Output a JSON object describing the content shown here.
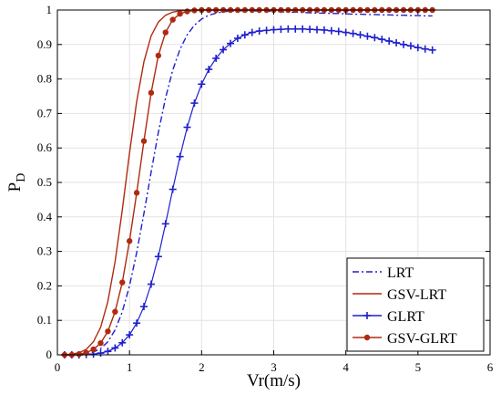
{
  "chart_data": {
    "type": "line",
    "xlabel": "Vr(m/s)",
    "ylabel_main": "P",
    "ylabel_sub": "D",
    "xlim": [
      0,
      6
    ],
    "ylim": [
      0,
      1
    ],
    "xticks": [
      "0",
      "1",
      "2",
      "3",
      "4",
      "5",
      "6"
    ],
    "yticks": [
      "0",
      "0.1",
      "0.2",
      "0.3",
      "0.4",
      "0.5",
      "0.6",
      "0.7",
      "0.8",
      "0.9",
      "1"
    ],
    "grid": true,
    "legend_position": "bottom-right",
    "x": [
      0.1,
      0.2,
      0.3,
      0.4,
      0.5,
      0.6,
      0.7,
      0.8,
      0.9,
      1.0,
      1.1,
      1.2,
      1.3,
      1.4,
      1.5,
      1.6,
      1.7,
      1.8,
      1.9,
      2.0,
      2.1,
      2.2,
      2.3,
      2.4,
      2.5,
      2.6,
      2.7,
      2.8,
      2.9,
      3.0,
      3.1,
      3.2,
      3.3,
      3.4,
      3.5,
      3.6,
      3.7,
      3.8,
      3.9,
      4.0,
      4.1,
      4.2,
      4.3,
      4.4,
      4.5,
      4.6,
      4.7,
      4.8,
      4.9,
      5.0,
      5.1,
      5.2
    ],
    "series": [
      {
        "name": "LRT",
        "color": "#1f1fd0",
        "style": "dashdot",
        "marker": "none",
        "values": [
          0.0,
          0.0,
          0.001,
          0.003,
          0.008,
          0.018,
          0.038,
          0.072,
          0.125,
          0.2,
          0.297,
          0.41,
          0.53,
          0.645,
          0.745,
          0.826,
          0.886,
          0.928,
          0.956,
          0.974,
          0.985,
          0.991,
          0.995,
          0.997,
          0.998,
          0.998,
          0.998,
          0.997,
          0.997,
          0.996,
          0.995,
          0.994,
          0.994,
          0.993,
          0.992,
          0.991,
          0.991,
          0.99,
          0.99,
          0.989,
          0.988,
          0.988,
          0.987,
          0.987,
          0.986,
          0.986,
          0.985,
          0.985,
          0.984,
          0.984,
          0.983,
          0.983
        ]
      },
      {
        "name": "GSV-LRT",
        "color": "#b02a10",
        "style": "solid",
        "marker": "none",
        "values": [
          0.0,
          0.002,
          0.006,
          0.016,
          0.038,
          0.08,
          0.155,
          0.27,
          0.42,
          0.585,
          0.735,
          0.85,
          0.925,
          0.965,
          0.985,
          0.994,
          0.998,
          0.999,
          1.0,
          1.0,
          1.0,
          1.0,
          1.0,
          1.0,
          1.0,
          1.0,
          1.0,
          1.0,
          1.0,
          1.0,
          1.0,
          1.0,
          1.0,
          1.0,
          1.0,
          1.0,
          1.0,
          1.0,
          1.0,
          1.0,
          1.0,
          1.0,
          1.0,
          1.0,
          1.0,
          1.0,
          1.0,
          1.0,
          1.0,
          1.0,
          1.0,
          1.0
        ]
      },
      {
        "name": "GLRT",
        "color": "#1f1fd0",
        "style": "solid",
        "marker": "plus",
        "values": [
          0.0,
          0.0,
          0.0,
          0.001,
          0.002,
          0.005,
          0.01,
          0.02,
          0.035,
          0.058,
          0.092,
          0.14,
          0.205,
          0.285,
          0.38,
          0.48,
          0.575,
          0.66,
          0.73,
          0.785,
          0.828,
          0.86,
          0.885,
          0.903,
          0.918,
          0.928,
          0.935,
          0.939,
          0.941,
          0.943,
          0.944,
          0.945,
          0.945,
          0.945,
          0.944,
          0.943,
          0.942,
          0.94,
          0.938,
          0.935,
          0.932,
          0.928,
          0.924,
          0.92,
          0.915,
          0.91,
          0.905,
          0.9,
          0.896,
          0.891,
          0.887,
          0.884
        ]
      },
      {
        "name": "GSV-GLRT",
        "color": "#b02a10",
        "style": "solid",
        "marker": "dot",
        "values": [
          0.0,
          0.0,
          0.002,
          0.006,
          0.016,
          0.034,
          0.068,
          0.125,
          0.21,
          0.33,
          0.47,
          0.62,
          0.76,
          0.868,
          0.935,
          0.972,
          0.989,
          0.996,
          0.999,
          1.0,
          1.0,
          1.0,
          1.0,
          1.0,
          1.0,
          1.0,
          1.0,
          1.0,
          1.0,
          1.0,
          1.0,
          1.0,
          1.0,
          1.0,
          1.0,
          1.0,
          1.0,
          1.0,
          1.0,
          1.0,
          1.0,
          1.0,
          1.0,
          1.0,
          1.0,
          1.0,
          1.0,
          1.0,
          1.0,
          1.0,
          1.0,
          1.0
        ]
      }
    ]
  }
}
